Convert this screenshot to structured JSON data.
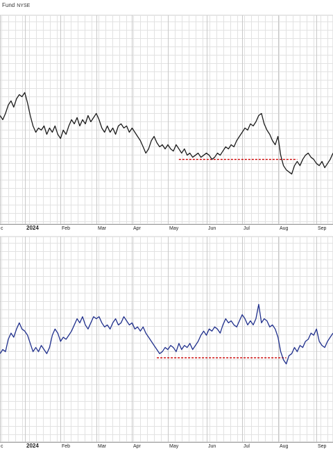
{
  "header": {
    "title": "Fund",
    "exchange": "NYSE"
  },
  "chart_data": [
    {
      "type": "line",
      "name": "price-panel",
      "line_color": "#1a1a1a",
      "reference_line_color": "#cc0000",
      "grid": true,
      "x_tick_labels": [
        {
          "label": "c",
          "x": 0
        },
        {
          "label": "2024",
          "x": 9,
          "year": true
        },
        {
          "label": "Feb",
          "x": 22
        },
        {
          "label": "Mar",
          "x": 35
        },
        {
          "label": "Apr",
          "x": 48
        },
        {
          "label": "May",
          "x": 61
        },
        {
          "label": "Jun",
          "x": 75
        },
        {
          "label": "Jul",
          "x": 88
        },
        {
          "label": "Aug",
          "x": 101
        },
        {
          "label": "Sep",
          "x": 115
        }
      ],
      "x_range": [
        0,
        121
      ],
      "y_range": [
        0,
        100
      ],
      "reference_line": {
        "y": 31,
        "x_start": 65,
        "x_end": 108
      },
      "points": [
        [
          0,
          52
        ],
        [
          1,
          50
        ],
        [
          2,
          53
        ],
        [
          3,
          57
        ],
        [
          4,
          59
        ],
        [
          5,
          56
        ],
        [
          6,
          60
        ],
        [
          7,
          62
        ],
        [
          8,
          61
        ],
        [
          9,
          63
        ],
        [
          10,
          58
        ],
        [
          11,
          52
        ],
        [
          12,
          47
        ],
        [
          13,
          44
        ],
        [
          14,
          46
        ],
        [
          15,
          45
        ],
        [
          16,
          47
        ],
        [
          17,
          43
        ],
        [
          18,
          46
        ],
        [
          19,
          44
        ],
        [
          20,
          47
        ],
        [
          21,
          43
        ],
        [
          22,
          41
        ],
        [
          23,
          45
        ],
        [
          24,
          43
        ],
        [
          25,
          47
        ],
        [
          26,
          50
        ],
        [
          27,
          48
        ],
        [
          28,
          51
        ],
        [
          29,
          47
        ],
        [
          30,
          50
        ],
        [
          31,
          48
        ],
        [
          32,
          52
        ],
        [
          33,
          49
        ],
        [
          34,
          51
        ],
        [
          35,
          53
        ],
        [
          36,
          50
        ],
        [
          37,
          46
        ],
        [
          38,
          44
        ],
        [
          39,
          47
        ],
        [
          40,
          44
        ],
        [
          41,
          46
        ],
        [
          42,
          43
        ],
        [
          43,
          47
        ],
        [
          44,
          48
        ],
        [
          45,
          46
        ],
        [
          46,
          47
        ],
        [
          47,
          44
        ],
        [
          48,
          46
        ],
        [
          49,
          44
        ],
        [
          50,
          42
        ],
        [
          51,
          40
        ],
        [
          52,
          37
        ],
        [
          53,
          34
        ],
        [
          54,
          36
        ],
        [
          55,
          40
        ],
        [
          56,
          42
        ],
        [
          57,
          39
        ],
        [
          58,
          37
        ],
        [
          59,
          38
        ],
        [
          60,
          36
        ],
        [
          61,
          38
        ],
        [
          62,
          36
        ],
        [
          63,
          35
        ],
        [
          64,
          38
        ],
        [
          65,
          36
        ],
        [
          66,
          34
        ],
        [
          67,
          36
        ],
        [
          68,
          33
        ],
        [
          69,
          34
        ],
        [
          70,
          32
        ],
        [
          71,
          33
        ],
        [
          72,
          34
        ],
        [
          73,
          32
        ],
        [
          74,
          33
        ],
        [
          75,
          34
        ],
        [
          76,
          33
        ],
        [
          77,
          31
        ],
        [
          78,
          32
        ],
        [
          79,
          34
        ],
        [
          80,
          33
        ],
        [
          81,
          35
        ],
        [
          82,
          37
        ],
        [
          83,
          36
        ],
        [
          84,
          38
        ],
        [
          85,
          37
        ],
        [
          86,
          40
        ],
        [
          87,
          42
        ],
        [
          88,
          44
        ],
        [
          89,
          46
        ],
        [
          90,
          45
        ],
        [
          91,
          48
        ],
        [
          92,
          47
        ],
        [
          93,
          49
        ],
        [
          94,
          52
        ],
        [
          95,
          53
        ],
        [
          96,
          48
        ],
        [
          97,
          45
        ],
        [
          98,
          43
        ],
        [
          99,
          40
        ],
        [
          100,
          38
        ],
        [
          101,
          42
        ],
        [
          102,
          33
        ],
        [
          103,
          28
        ],
        [
          104,
          26
        ],
        [
          105,
          25
        ],
        [
          106,
          24
        ],
        [
          107,
          28
        ],
        [
          108,
          30
        ],
        [
          109,
          28
        ],
        [
          110,
          31
        ],
        [
          111,
          33
        ],
        [
          112,
          34
        ],
        [
          113,
          32
        ],
        [
          114,
          31
        ],
        [
          115,
          29
        ],
        [
          116,
          28
        ],
        [
          117,
          30
        ],
        [
          118,
          27
        ],
        [
          119,
          29
        ],
        [
          120,
          31
        ],
        [
          121,
          34
        ]
      ]
    },
    {
      "type": "line",
      "name": "relative-panel",
      "line_color": "#1f2f8c",
      "reference_line_color": "#cc0000",
      "grid": true,
      "x_tick_labels": [
        {
          "label": "c",
          "x": 0
        },
        {
          "label": "2024",
          "x": 9,
          "year": true
        },
        {
          "label": "Feb",
          "x": 22
        },
        {
          "label": "Mar",
          "x": 35
        },
        {
          "label": "Apr",
          "x": 48
        },
        {
          "label": "May",
          "x": 61
        },
        {
          "label": "Jun",
          "x": 75
        },
        {
          "label": "Jul",
          "x": 88
        },
        {
          "label": "Aug",
          "x": 101
        },
        {
          "label": "Sep",
          "x": 115
        }
      ],
      "x_range": [
        0,
        121
      ],
      "y_range": [
        0,
        100
      ],
      "reference_line": {
        "y": 41,
        "x_start": 57,
        "x_end": 104
      },
      "points": [
        [
          0,
          43
        ],
        [
          1,
          45
        ],
        [
          2,
          44
        ],
        [
          3,
          50
        ],
        [
          4,
          53
        ],
        [
          5,
          51
        ],
        [
          6,
          55
        ],
        [
          7,
          58
        ],
        [
          8,
          55
        ],
        [
          9,
          54
        ],
        [
          10,
          52
        ],
        [
          11,
          48
        ],
        [
          12,
          44
        ],
        [
          13,
          46
        ],
        [
          14,
          44
        ],
        [
          15,
          47
        ],
        [
          16,
          45
        ],
        [
          17,
          43
        ],
        [
          18,
          46
        ],
        [
          19,
          52
        ],
        [
          20,
          55
        ],
        [
          21,
          53
        ],
        [
          22,
          49
        ],
        [
          23,
          51
        ],
        [
          24,
          50
        ],
        [
          25,
          52
        ],
        [
          26,
          54
        ],
        [
          27,
          57
        ],
        [
          28,
          60
        ],
        [
          29,
          58
        ],
        [
          30,
          61
        ],
        [
          31,
          57
        ],
        [
          32,
          55
        ],
        [
          33,
          58
        ],
        [
          34,
          61
        ],
        [
          35,
          60
        ],
        [
          36,
          61
        ],
        [
          37,
          58
        ],
        [
          38,
          56
        ],
        [
          39,
          57
        ],
        [
          40,
          55
        ],
        [
          41,
          58
        ],
        [
          42,
          60
        ],
        [
          43,
          57
        ],
        [
          44,
          58
        ],
        [
          45,
          61
        ],
        [
          46,
          59
        ],
        [
          47,
          57
        ],
        [
          48,
          58
        ],
        [
          49,
          55
        ],
        [
          50,
          56
        ],
        [
          51,
          54
        ],
        [
          52,
          56
        ],
        [
          53,
          53
        ],
        [
          54,
          51
        ],
        [
          55,
          49
        ],
        [
          56,
          47
        ],
        [
          57,
          45
        ],
        [
          58,
          43
        ],
        [
          59,
          44
        ],
        [
          60,
          46
        ],
        [
          61,
          45
        ],
        [
          62,
          47
        ],
        [
          63,
          46
        ],
        [
          64,
          44
        ],
        [
          65,
          48
        ],
        [
          66,
          45
        ],
        [
          67,
          47
        ],
        [
          68,
          46
        ],
        [
          69,
          48
        ],
        [
          70,
          45
        ],
        [
          71,
          47
        ],
        [
          72,
          49
        ],
        [
          73,
          52
        ],
        [
          74,
          54
        ],
        [
          75,
          52
        ],
        [
          76,
          55
        ],
        [
          77,
          54
        ],
        [
          78,
          56
        ],
        [
          79,
          55
        ],
        [
          80,
          53
        ],
        [
          81,
          57
        ],
        [
          82,
          60
        ],
        [
          83,
          58
        ],
        [
          84,
          59
        ],
        [
          85,
          57
        ],
        [
          86,
          56
        ],
        [
          87,
          59
        ],
        [
          88,
          62
        ],
        [
          89,
          60
        ],
        [
          90,
          57
        ],
        [
          91,
          59
        ],
        [
          92,
          57
        ],
        [
          93,
          60
        ],
        [
          94,
          67
        ],
        [
          95,
          58
        ],
        [
          96,
          60
        ],
        [
          97,
          59
        ],
        [
          98,
          56
        ],
        [
          99,
          57
        ],
        [
          100,
          55
        ],
        [
          101,
          51
        ],
        [
          102,
          44
        ],
        [
          103,
          40
        ],
        [
          104,
          38
        ],
        [
          105,
          42
        ],
        [
          106,
          43
        ],
        [
          107,
          46
        ],
        [
          108,
          44
        ],
        [
          109,
          47
        ],
        [
          110,
          46
        ],
        [
          111,
          49
        ],
        [
          112,
          50
        ],
        [
          113,
          53
        ],
        [
          114,
          52
        ],
        [
          115,
          55
        ],
        [
          116,
          49
        ],
        [
          117,
          47
        ],
        [
          118,
          46
        ],
        [
          119,
          49
        ],
        [
          120,
          51
        ],
        [
          121,
          53
        ]
      ]
    }
  ]
}
